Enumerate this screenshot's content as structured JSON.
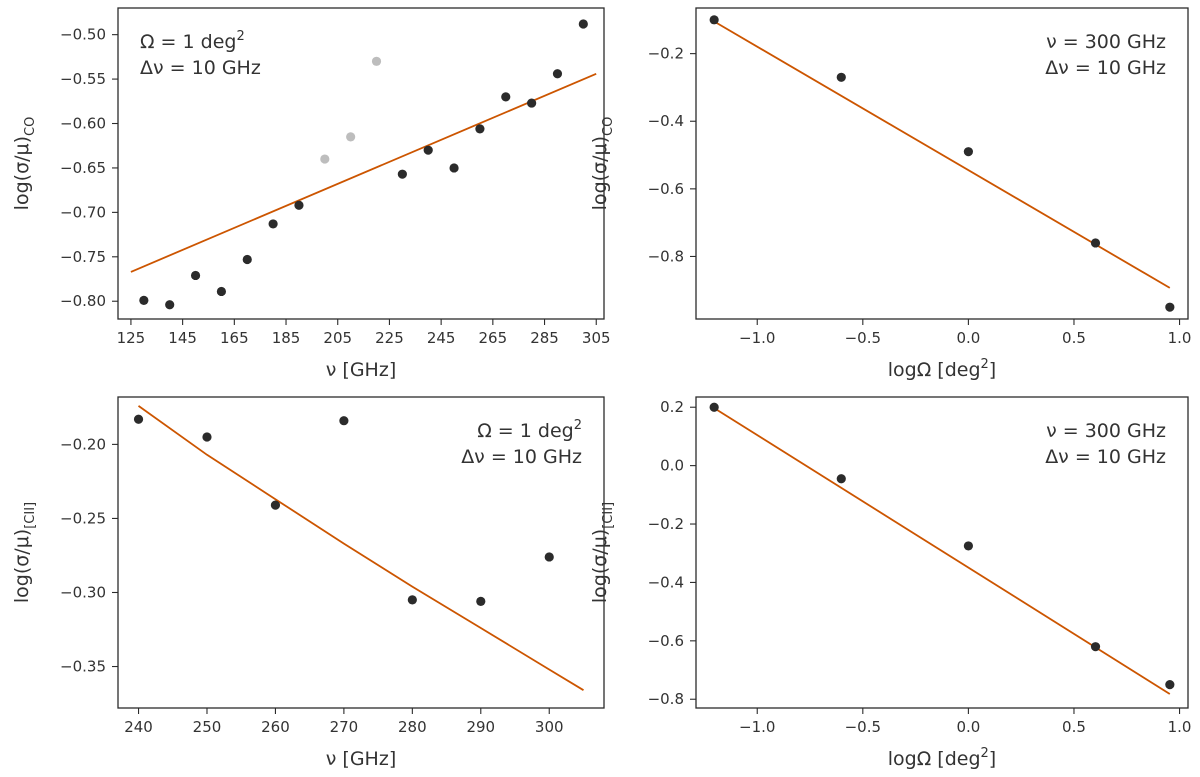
{
  "colors": {
    "point": "#2b2b2b",
    "point_highlight": "#bdbdbd",
    "fit": "#cc5500"
  },
  "chart_data": [
    {
      "id": "co_vs_freq",
      "type": "scatter",
      "xlabel": "ν [GHz]",
      "ylabel": "log(σ/μ)",
      "ylabel_sub": "CO",
      "xlim": [
        120,
        308
      ],
      "ylim": [
        -0.82,
        -0.47
      ],
      "xticks": [
        125,
        145,
        165,
        185,
        205,
        225,
        245,
        265,
        285,
        305
      ],
      "yticks": [
        -0.8,
        -0.75,
        -0.7,
        -0.65,
        -0.6,
        -0.55,
        -0.5
      ],
      "tick_decimals": 2,
      "annotation": {
        "position": "top-left",
        "line1": "Ω = 1 deg",
        "line1_sup": "2",
        "line2": "Δν = 10 GHz"
      },
      "series": [
        {
          "name": "data",
          "style": "point",
          "x": [
            130,
            140,
            150,
            160,
            170,
            180,
            190,
            230,
            240,
            250,
            260,
            270,
            280,
            290,
            300
          ],
          "y": [
            -0.799,
            -0.804,
            -0.771,
            -0.789,
            -0.753,
            -0.713,
            -0.692,
            -0.657,
            -0.63,
            -0.65,
            -0.606,
            -0.57,
            -0.577,
            -0.544,
            -0.488
          ]
        },
        {
          "name": "excluded",
          "style": "point_highlight",
          "x": [
            200,
            210,
            220
          ],
          "y": [
            -0.64,
            -0.615,
            -0.53
          ]
        },
        {
          "name": "fit",
          "style": "line",
          "x": [
            125,
            305
          ],
          "y": [
            -0.767,
            -0.544
          ]
        }
      ]
    },
    {
      "id": "co_vs_area",
      "type": "scatter",
      "xlabel": "logΩ [deg",
      "xlabel_sup": "2",
      "xlabel_end": "]",
      "ylabel": "log(σ/μ)",
      "ylabel_sub": "CO",
      "xlim": [
        -1.29,
        1.04
      ],
      "ylim": [
        -0.985,
        -0.065
      ],
      "xticks": [
        -1.0,
        -0.5,
        0.0,
        0.5,
        1.0
      ],
      "yticks": [
        -0.8,
        -0.6,
        -0.4,
        -0.2
      ],
      "tick_decimals": 1,
      "annotation": {
        "position": "top-right",
        "line1": "ν = 300 GHz",
        "line1_sup": "",
        "line2": "Δν = 10 GHz"
      },
      "series": [
        {
          "name": "data",
          "style": "point",
          "x": [
            -1.204,
            -0.602,
            0.0,
            0.602,
            0.954
          ],
          "y": [
            -0.1,
            -0.27,
            -0.49,
            -0.76,
            -0.95
          ]
        },
        {
          "name": "fit",
          "style": "line",
          "x": [
            -1.204,
            0.954
          ],
          "y": [
            -0.105,
            -0.893
          ]
        }
      ]
    },
    {
      "id": "cii_vs_freq",
      "type": "scatter",
      "xlabel": "ν [GHz]",
      "ylabel": "log(σ/μ)",
      "ylabel_sub": "[CII]",
      "xlim": [
        237,
        308
      ],
      "ylim": [
        -0.378,
        -0.168
      ],
      "xticks": [
        240,
        250,
        260,
        270,
        280,
        290,
        300
      ],
      "yticks": [
        -0.35,
        -0.3,
        -0.25,
        -0.2
      ],
      "tick_decimals": 2,
      "annotation": {
        "position": "top-right",
        "line1": "Ω = 1 deg",
        "line1_sup": "2",
        "line2": "Δν = 10 GHz"
      },
      "series": [
        {
          "name": "data",
          "style": "point",
          "x": [
            240,
            250,
            260,
            270,
            280,
            290,
            300
          ],
          "y": [
            -0.183,
            -0.195,
            -0.241,
            -0.184,
            -0.305,
            -0.306,
            -0.276
          ]
        },
        {
          "name": "fit",
          "style": "line",
          "x": [
            240,
            250,
            260,
            270,
            280,
            290,
            300,
            305
          ],
          "y": [
            -0.174,
            -0.207,
            -0.237,
            -0.267,
            -0.296,
            -0.324,
            -0.352,
            -0.366
          ]
        }
      ]
    },
    {
      "id": "cii_vs_area",
      "type": "scatter",
      "xlabel": "logΩ [deg",
      "xlabel_sup": "2",
      "xlabel_end": "]",
      "ylabel": "log(σ/μ)",
      "ylabel_sub": "[CII]",
      "xlim": [
        -1.29,
        1.04
      ],
      "ylim": [
        -0.83,
        0.235
      ],
      "xticks": [
        -1.0,
        -0.5,
        0.0,
        0.5,
        1.0
      ],
      "yticks": [
        -0.8,
        -0.6,
        -0.4,
        -0.2,
        0.0,
        0.2
      ],
      "tick_decimals": 1,
      "annotation": {
        "position": "top-right",
        "line1": "ν = 300 GHz",
        "line1_sup": "",
        "line2": "Δν = 10 GHz"
      },
      "series": [
        {
          "name": "data",
          "style": "point",
          "x": [
            -1.204,
            -0.602,
            0.0,
            0.602,
            0.954
          ],
          "y": [
            0.2,
            -0.045,
            -0.275,
            -0.62,
            -0.75
          ]
        },
        {
          "name": "fit",
          "style": "line",
          "x": [
            -1.204,
            0.954
          ],
          "y": [
            0.197,
            -0.782
          ]
        }
      ]
    }
  ]
}
